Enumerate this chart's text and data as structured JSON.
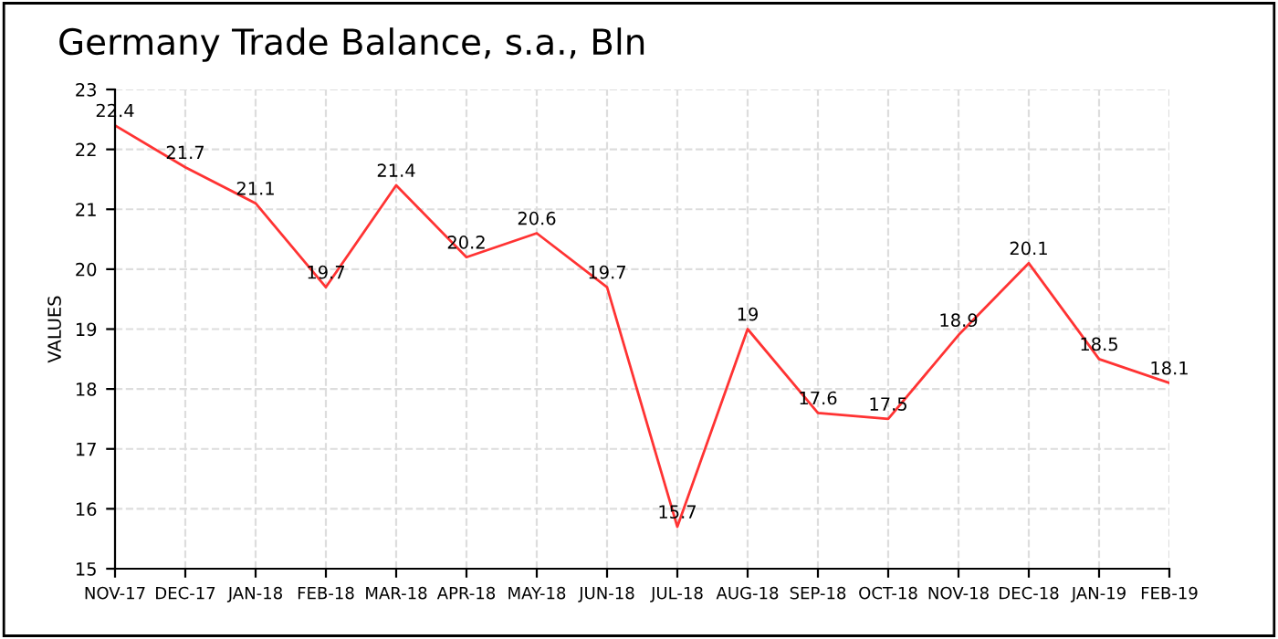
{
  "chart_data": {
    "type": "line",
    "title": "Germany Trade Balance, s.a., Bln",
    "ylabel": "VALUES",
    "categories": [
      "NOV-17",
      "DEC-17",
      "JAN-18",
      "FEB-18",
      "MAR-18",
      "APR-18",
      "MAY-18",
      "JUN-18",
      "JUL-18",
      "AUG-18",
      "SEP-18",
      "OCT-18",
      "NOV-18",
      "DEC-18",
      "JAN-19",
      "FEB-19"
    ],
    "series": [
      {
        "color": "#ff3333",
        "values": [
          22.4,
          21.7,
          21.1,
          19.7,
          21.4,
          20.2,
          20.6,
          19.7,
          15.7,
          19,
          17.6,
          17.5,
          18.9,
          20.1,
          18.5,
          18.1
        ]
      }
    ],
    "ylim": [
      15,
      23
    ],
    "yticks": [
      15,
      16,
      17,
      18,
      19,
      20,
      21,
      22,
      23
    ],
    "grid": true,
    "data_labels": true,
    "marker": "none",
    "line_style": "solid",
    "legend": false
  }
}
